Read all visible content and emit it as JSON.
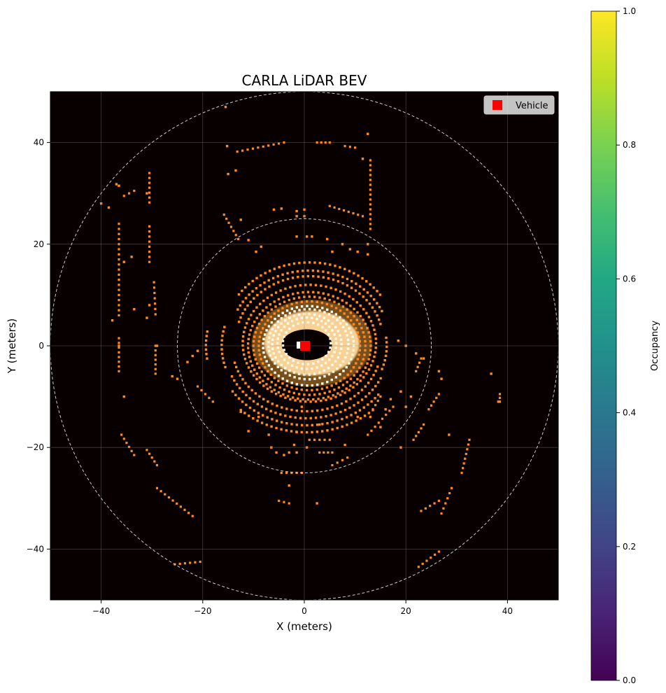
{
  "chart_data": {
    "type": "heatmap",
    "title": "CARLA LiDAR BEV",
    "xlabel": "X (meters)",
    "ylabel": "Y (meters)",
    "xlim": [
      -50,
      50
    ],
    "ylim": [
      -50,
      50
    ],
    "xticks": [
      -40,
      -20,
      0,
      20,
      40
    ],
    "yticks": [
      -40,
      -20,
      0,
      20,
      40
    ],
    "grid": true,
    "range_rings_m": [
      25,
      50
    ],
    "legend": {
      "placement": "top-right",
      "entries": [
        {
          "label": "Vehicle",
          "marker": "square",
          "color": "#ff0000"
        }
      ]
    },
    "vehicle_position": [
      0,
      0
    ],
    "heatmap_colors": {
      "background": "#080000",
      "point": "#ff8a1f",
      "dense": "#fffbe8"
    },
    "colorbar": {
      "label": "Occupancy",
      "colormap": "viridis",
      "range": [
        0,
        1
      ],
      "ticks": [
        "0.0",
        "0.2",
        "0.4",
        "0.6",
        "0.8",
        "1.0"
      ]
    },
    "structures": {
      "lines": [
        {
          "x1": -36.5,
          "y1": 1.5,
          "x2": -36.5,
          "y2": -5
        },
        {
          "x1": -29.3,
          "y1": 0,
          "x2": -29.3,
          "y2": -5.5
        },
        {
          "x1": -29.6,
          "y1": 12.5,
          "x2": -29.3,
          "y2": 6.2
        },
        {
          "x1": -36.5,
          "y1": 24,
          "x2": -36.5,
          "y2": 6
        },
        {
          "x1": -30.5,
          "y1": 34,
          "x2": -30.5,
          "y2": 28.2
        },
        {
          "x1": -30.5,
          "y1": 23.5,
          "x2": -30.5,
          "y2": 16.5
        },
        {
          "x1": -33.5,
          "y1": 30.5,
          "x2": -35.5,
          "y2": 29.5
        },
        {
          "x1": -13.2,
          "y1": 38.2,
          "x2": -4,
          "y2": 40
        },
        {
          "x1": 2.5,
          "y1": 40,
          "x2": 5,
          "y2": 40
        },
        {
          "x1": 8,
          "y1": 39.3,
          "x2": 10,
          "y2": 39
        },
        {
          "x1": 13,
          "y1": 36.5,
          "x2": 13,
          "y2": 23
        },
        {
          "x1": 5,
          "y1": 27.5,
          "x2": 11.5,
          "y2": 25.5
        },
        {
          "x1": -15.8,
          "y1": 25.8,
          "x2": -13,
          "y2": 21
        },
        {
          "x1": -36,
          "y1": -17.5,
          "x2": -33.5,
          "y2": -21.5
        },
        {
          "x1": -31,
          "y1": -20.5,
          "x2": -29,
          "y2": -23.5
        },
        {
          "x1": -29,
          "y1": -28,
          "x2": -22,
          "y2": -33.5
        },
        {
          "x1": -25.5,
          "y1": -43,
          "x2": -20.5,
          "y2": -42.5
        },
        {
          "x1": -21,
          "y1": -8,
          "x2": -18,
          "y2": -11
        },
        {
          "x1": -4.5,
          "y1": -25,
          "x2": -0.5,
          "y2": -25
        },
        {
          "x1": -5,
          "y1": -30.5,
          "x2": -3,
          "y2": -31
        },
        {
          "x1": 1,
          "y1": -18.5,
          "x2": 5,
          "y2": -18.5
        },
        {
          "x1": 3,
          "y1": -21,
          "x2": 5.5,
          "y2": -21
        },
        {
          "x1": 5.5,
          "y1": -23.5,
          "x2": 8.5,
          "y2": -22
        },
        {
          "x1": 12.5,
          "y1": -17.5,
          "x2": 17.5,
          "y2": -12
        },
        {
          "x1": 21.5,
          "y1": -18.5,
          "x2": 23.5,
          "y2": -15.5
        },
        {
          "x1": 24.5,
          "y1": -12.5,
          "x2": 26.5,
          "y2": -9.5
        },
        {
          "x1": 23,
          "y1": -32.5,
          "x2": 26.5,
          "y2": -30.5
        },
        {
          "x1": 22.5,
          "y1": -43.5,
          "x2": 26.5,
          "y2": -40.5
        },
        {
          "x1": 27,
          "y1": -33,
          "x2": 29,
          "y2": -28
        },
        {
          "x1": 31,
          "y1": -25,
          "x2": 32.5,
          "y2": -18.5
        },
        {
          "x1": 22,
          "y1": -5,
          "x2": 23,
          "y2": -2.5
        },
        {
          "x1": 38.5,
          "y1": -9.5,
          "x2": 38.5,
          "y2": -11
        },
        {
          "x1": 13.5,
          "y1": -12.5,
          "x2": 15,
          "y2": -10
        }
      ],
      "points": [
        [
          -40,
          28
        ],
        [
          -38.5,
          27.2
        ],
        [
          -37,
          31.8
        ],
        [
          -36.5,
          31.5
        ],
        [
          -35.5,
          16.5
        ],
        [
          -34,
          17.5
        ],
        [
          -31,
          30
        ],
        [
          -33.5,
          7.2
        ],
        [
          -37.8,
          5
        ],
        [
          -31,
          5.5
        ],
        [
          -30.5,
          8
        ],
        [
          -35.5,
          -10
        ],
        [
          -26,
          -6
        ],
        [
          -25,
          -6.5
        ],
        [
          -23,
          -3.2
        ],
        [
          -22,
          -2
        ],
        [
          -21,
          -1
        ],
        [
          -15.5,
          47
        ],
        [
          -15.2,
          39.3
        ],
        [
          -15,
          33.8
        ],
        [
          -13.5,
          34.5
        ],
        [
          -12.5,
          24.8
        ],
        [
          -11,
          20.8
        ],
        [
          -9.5,
          18.5
        ],
        [
          -8.5,
          19.5
        ],
        [
          -6,
          26.8
        ],
        [
          -4.5,
          27
        ],
        [
          -1.5,
          26.5
        ],
        [
          -1.5,
          25.5
        ],
        [
          0,
          26.8
        ],
        [
          0,
          25.5
        ],
        [
          -1.5,
          21.5
        ],
        [
          0.5,
          21.5
        ],
        [
          1.5,
          21.5
        ],
        [
          4.5,
          21
        ],
        [
          5.5,
          18.5
        ],
        [
          7.5,
          20
        ],
        [
          9,
          19
        ],
        [
          10.5,
          18.5
        ],
        [
          12.5,
          41.7
        ],
        [
          12.5,
          20
        ],
        [
          11.5,
          36.8
        ],
        [
          12.5,
          18
        ],
        [
          -12.5,
          -13
        ],
        [
          -11,
          -16.8
        ],
        [
          -9,
          -14
        ],
        [
          -7,
          -17.5
        ],
        [
          -6.5,
          -20
        ],
        [
          -5.5,
          -21
        ],
        [
          -4,
          -21.5
        ],
        [
          -3,
          -21
        ],
        [
          -1.5,
          -21
        ],
        [
          -3,
          -27.5
        ],
        [
          2.5,
          -31
        ],
        [
          -1.5,
          -17
        ],
        [
          -2,
          -19.5
        ],
        [
          0.5,
          -20
        ],
        [
          3,
          -15.5
        ],
        [
          -0.5,
          -12
        ],
        [
          8,
          -19.5
        ],
        [
          10.5,
          -14
        ],
        [
          13,
          -14
        ],
        [
          15,
          -16
        ],
        [
          16,
          -12.5
        ],
        [
          19,
          -20
        ],
        [
          20,
          -12
        ],
        [
          17,
          -10.5
        ],
        [
          19,
          -9
        ],
        [
          21,
          -10
        ],
        [
          28.5,
          -17.5
        ],
        [
          36.8,
          -5.5
        ],
        [
          38.2,
          -11
        ],
        [
          26.5,
          -5
        ],
        [
          27,
          -6.5
        ],
        [
          23.5,
          -2.5
        ],
        [
          22,
          -1.5
        ],
        [
          20,
          0
        ],
        [
          18.5,
          1
        ],
        [
          -29,
          0
        ],
        [
          -36.5,
          0
        ]
      ],
      "rings": [
        {
          "r": 4.5,
          "cx": 0.5,
          "cy": 0.5,
          "start": 0,
          "end": 360
        },
        {
          "r": 5.5,
          "cx": 0.5,
          "cy": 0.5,
          "start": 0,
          "end": 360
        },
        {
          "r": 6.5,
          "cx": 0.5,
          "cy": 0.3,
          "start": 0,
          "end": 360
        },
        {
          "r": 7.5,
          "cx": 0.8,
          "cy": 0.3,
          "start": 0,
          "end": 360
        },
        {
          "r": 8.5,
          "cx": 0.8,
          "cy": 0,
          "start": 0,
          "end": 360
        },
        {
          "r": 9.5,
          "cx": 1,
          "cy": 0,
          "start": 0,
          "end": 360
        },
        {
          "r": 10.5,
          "cx": 1,
          "cy": 0,
          "start": 0,
          "end": 360
        },
        {
          "r": 11.5,
          "cx": 1,
          "cy": 0,
          "start": 0,
          "end": 360
        },
        {
          "r": 12.5,
          "cx": 1,
          "cy": 0.5,
          "start": 0,
          "end": 360
        },
        {
          "r": 13.8,
          "cx": 1,
          "cy": 1,
          "start": 15,
          "end": 165
        },
        {
          "r": 15,
          "cx": 1,
          "cy": 1,
          "start": 25,
          "end": 155
        },
        {
          "r": 16.2,
          "cx": 1,
          "cy": 1.5,
          "start": 35,
          "end": 145
        },
        {
          "r": 14,
          "cx": 0.5,
          "cy": 0,
          "start": 195,
          "end": 345
        },
        {
          "r": 15.5,
          "cx": 0.5,
          "cy": 0,
          "start": 205,
          "end": 335
        },
        {
          "r": 17,
          "cx": 0.5,
          "cy": 0,
          "start": 215,
          "end": 325
        },
        {
          "r": 18.5,
          "cx": 0.5,
          "cy": 0,
          "start": 228,
          "end": 312
        },
        {
          "r": 14.5,
          "cx": 1,
          "cy": 0,
          "start": -20,
          "end": 10
        },
        {
          "r": 15.5,
          "cx": 0,
          "cy": 0,
          "start": 165,
          "end": 200
        },
        {
          "r": 17.5,
          "cx": -1,
          "cy": 0,
          "start": 170,
          "end": 190
        }
      ]
    }
  }
}
